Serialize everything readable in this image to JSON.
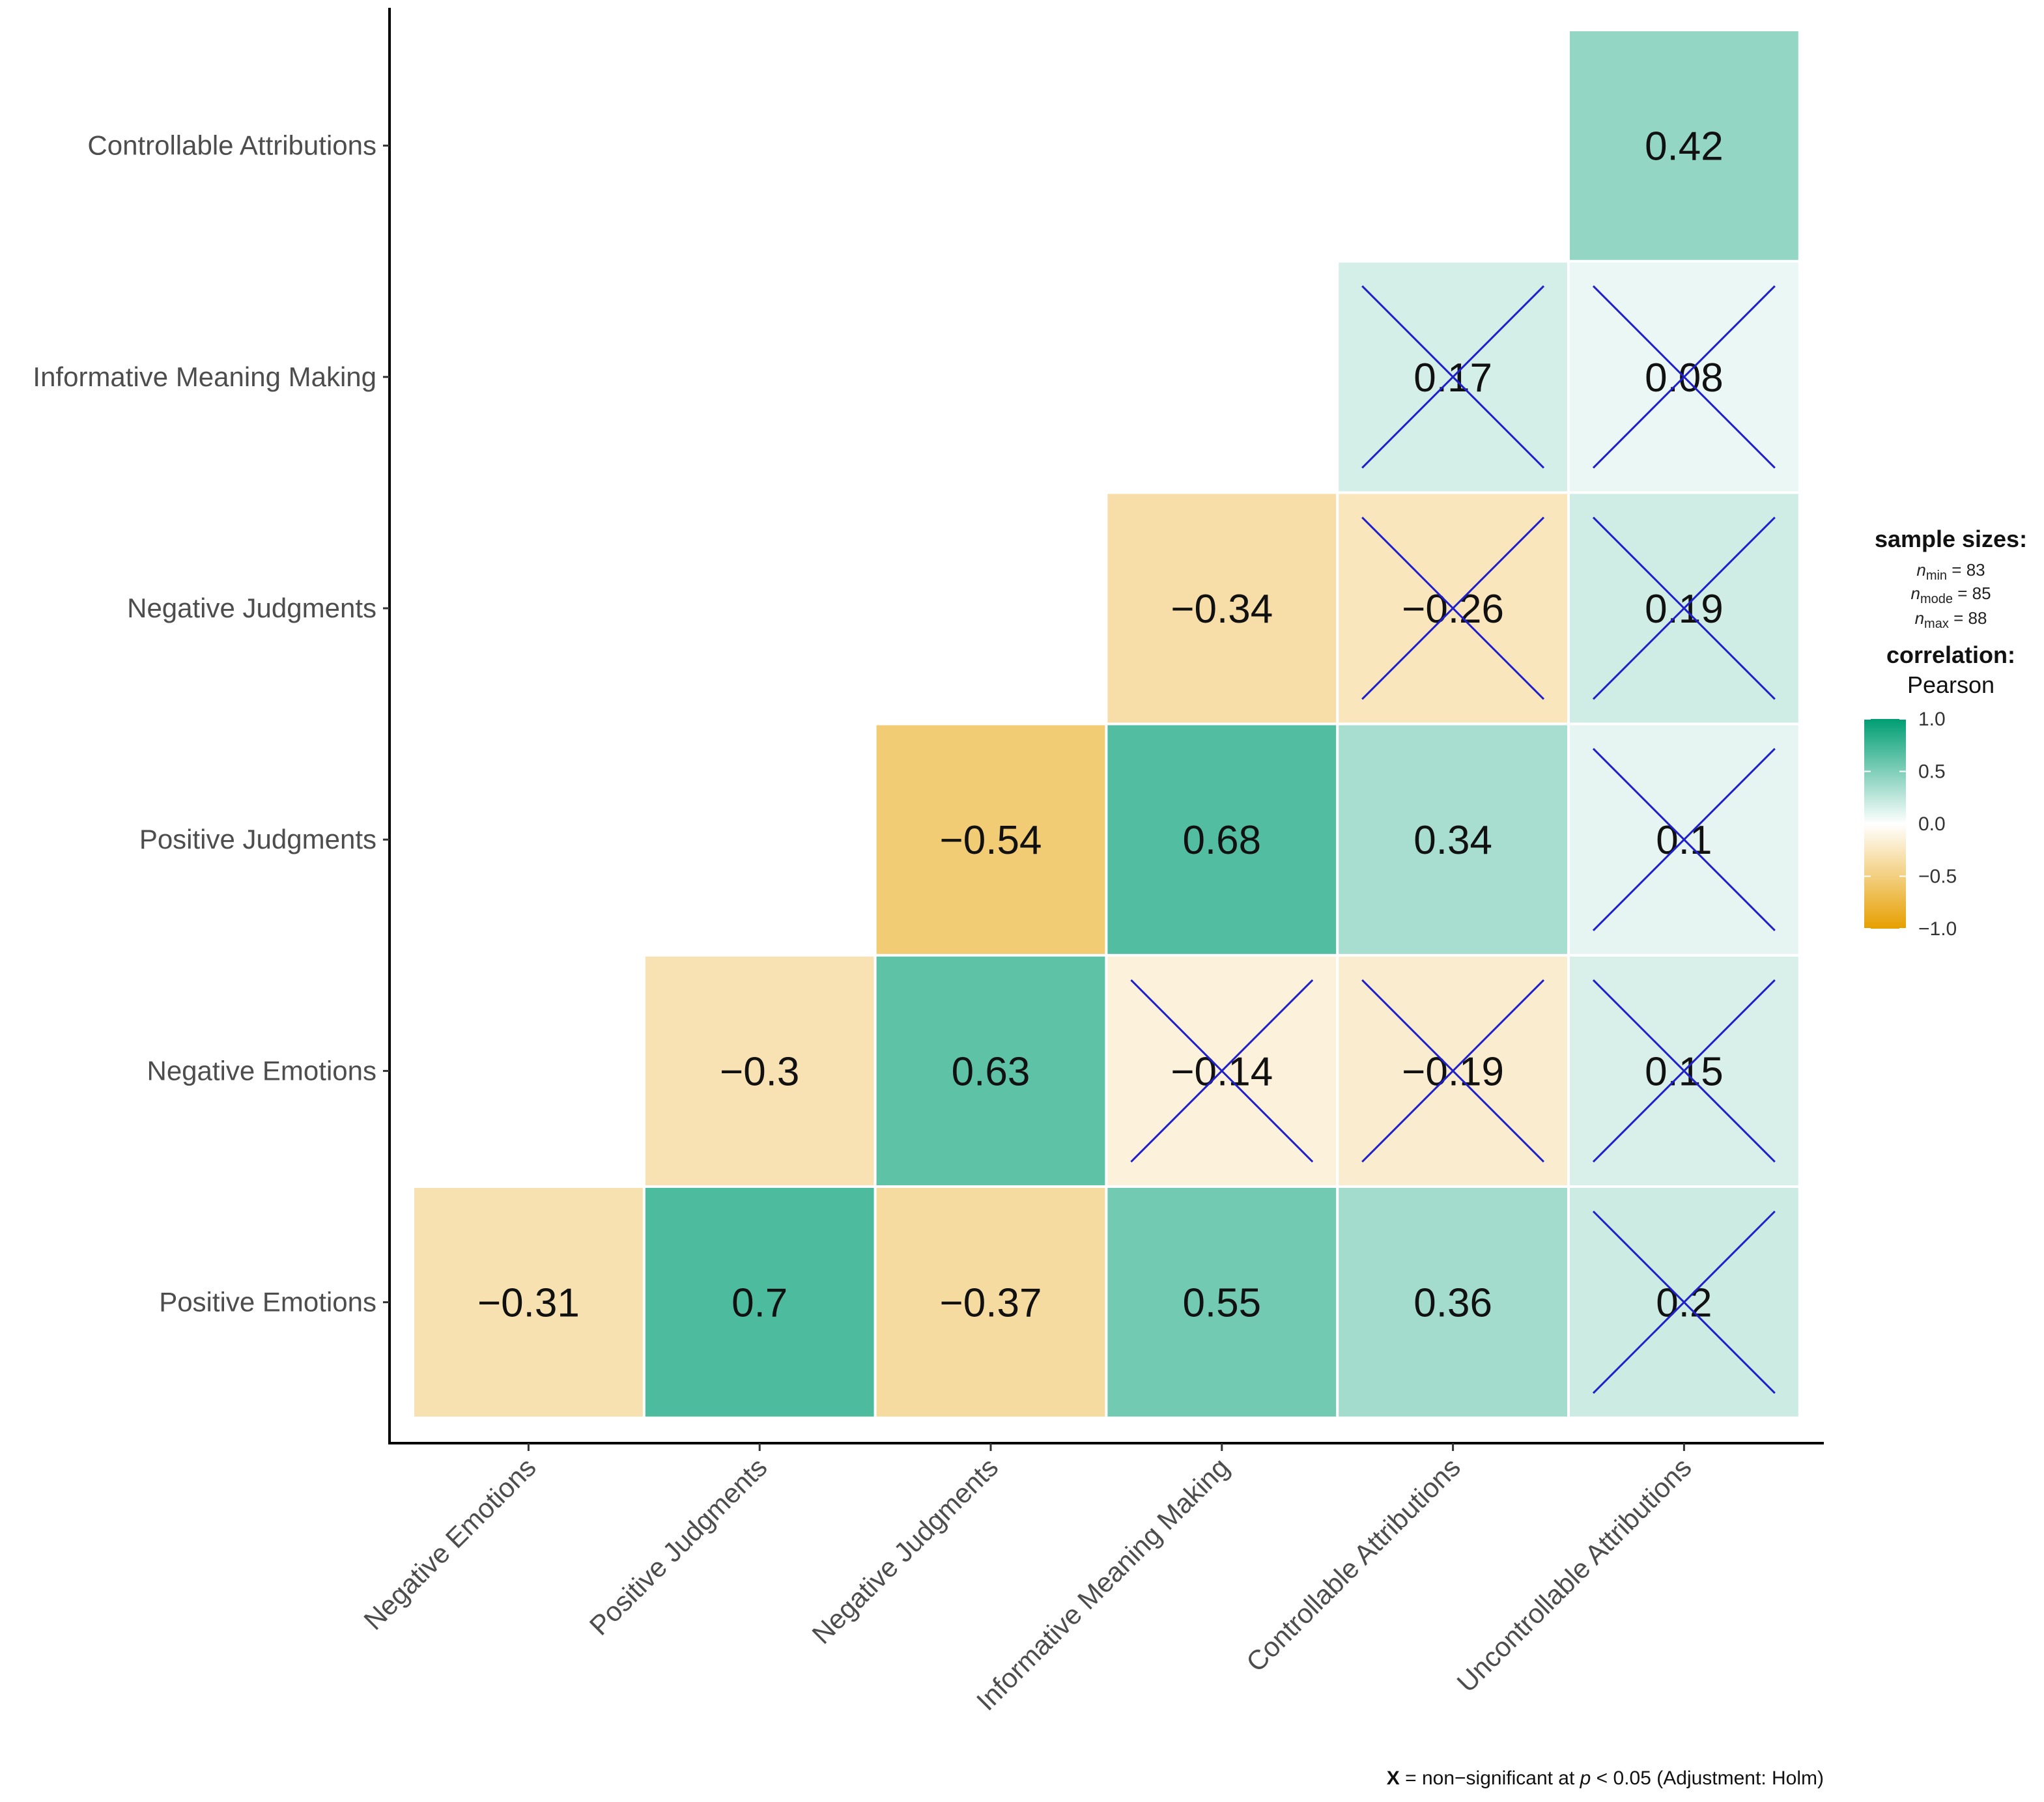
{
  "chart_data": {
    "type": "heatmap",
    "variables_x": [
      "Negative Emotions",
      "Positive Judgments",
      "Negative Judgments",
      "Informative Meaning Making",
      "Controllable Attributions",
      "Uncontrollable Attributions"
    ],
    "variables_y": [
      "Controllable Attributions",
      "Informative Meaning Making",
      "Negative Judgments",
      "Positive Judgments",
      "Negative Emotions",
      "Positive Emotions"
    ],
    "cells": [
      {
        "row": "Controllable Attributions",
        "col": "Uncontrollable Attributions",
        "value": 0.42,
        "label": "0.42",
        "nonsignificant": false
      },
      {
        "row": "Informative Meaning Making",
        "col": "Controllable Attributions",
        "value": 0.17,
        "label": "0.17",
        "nonsignificant": true
      },
      {
        "row": "Informative Meaning Making",
        "col": "Uncontrollable Attributions",
        "value": 0.08,
        "label": "0.08",
        "nonsignificant": true
      },
      {
        "row": "Negative Judgments",
        "col": "Informative Meaning Making",
        "value": -0.34,
        "label": "−0.34",
        "nonsignificant": false
      },
      {
        "row": "Negative Judgments",
        "col": "Controllable Attributions",
        "value": -0.26,
        "label": "−0.26",
        "nonsignificant": true
      },
      {
        "row": "Negative Judgments",
        "col": "Uncontrollable Attributions",
        "value": 0.19,
        "label": "0.19",
        "nonsignificant": true
      },
      {
        "row": "Positive Judgments",
        "col": "Negative Judgments",
        "value": -0.54,
        "label": "−0.54",
        "nonsignificant": false
      },
      {
        "row": "Positive Judgments",
        "col": "Informative Meaning Making",
        "value": 0.68,
        "label": "0.68",
        "nonsignificant": false
      },
      {
        "row": "Positive Judgments",
        "col": "Controllable Attributions",
        "value": 0.34,
        "label": "0.34",
        "nonsignificant": false
      },
      {
        "row": "Positive Judgments",
        "col": "Uncontrollable Attributions",
        "value": 0.1,
        "label": "0.1",
        "nonsignificant": true
      },
      {
        "row": "Negative Emotions",
        "col": "Positive Judgments",
        "value": -0.3,
        "label": "−0.3",
        "nonsignificant": false
      },
      {
        "row": "Negative Emotions",
        "col": "Negative Judgments",
        "value": 0.63,
        "label": "0.63",
        "nonsignificant": false
      },
      {
        "row": "Negative Emotions",
        "col": "Informative Meaning Making",
        "value": -0.14,
        "label": "−0.14",
        "nonsignificant": true
      },
      {
        "row": "Negative Emotions",
        "col": "Controllable Attributions",
        "value": -0.19,
        "label": "−0.19",
        "nonsignificant": true
      },
      {
        "row": "Negative Emotions",
        "col": "Uncontrollable Attributions",
        "value": 0.15,
        "label": "0.15",
        "nonsignificant": true
      },
      {
        "row": "Positive Emotions",
        "col": "Negative Emotions",
        "value": -0.31,
        "label": "−0.31",
        "nonsignificant": false
      },
      {
        "row": "Positive Emotions",
        "col": "Positive Judgments",
        "value": 0.7,
        "label": "0.7",
        "nonsignificant": false
      },
      {
        "row": "Positive Emotions",
        "col": "Negative Judgments",
        "value": -0.37,
        "label": "−0.37",
        "nonsignificant": false
      },
      {
        "row": "Positive Emotions",
        "col": "Informative Meaning Making",
        "value": 0.55,
        "label": "0.55",
        "nonsignificant": false
      },
      {
        "row": "Positive Emotions",
        "col": "Controllable Attributions",
        "value": 0.36,
        "label": "0.36",
        "nonsignificant": false
      },
      {
        "row": "Positive Emotions",
        "col": "Uncontrollable Attributions",
        "value": 0.2,
        "label": "0.2",
        "nonsignificant": true
      }
    ],
    "legend": {
      "sample_title": "sample sizes:",
      "n_min_label": "n",
      "n_min_sub": "min",
      "n_min_value": "= 83",
      "n_mode_label": "n",
      "n_mode_sub": "mode",
      "n_mode_value": "= 85",
      "n_max_label": "n",
      "n_max_sub": "max",
      "n_max_value": "= 88",
      "corr_title": "correlation:",
      "corr_method": "Pearson",
      "ticks": [
        {
          "value": 1.0,
          "label": "1.0"
        },
        {
          "value": 0.5,
          "label": "0.5"
        },
        {
          "value": 0.0,
          "label": "0.0"
        },
        {
          "value": -0.5,
          "label": "−0.5"
        },
        {
          "value": -1.0,
          "label": "−1.0"
        }
      ],
      "range": [
        -1,
        1
      ]
    },
    "colors": {
      "low": "#E69F00",
      "mid": "#FFFFFF",
      "high": "#009E73",
      "cross": "#1F1FCC"
    },
    "caption": {
      "x_mark": "X",
      "text1": " = non−significant at ",
      "p": "p",
      "text2": " < 0.05 (Adjustment: Holm)"
    }
  }
}
